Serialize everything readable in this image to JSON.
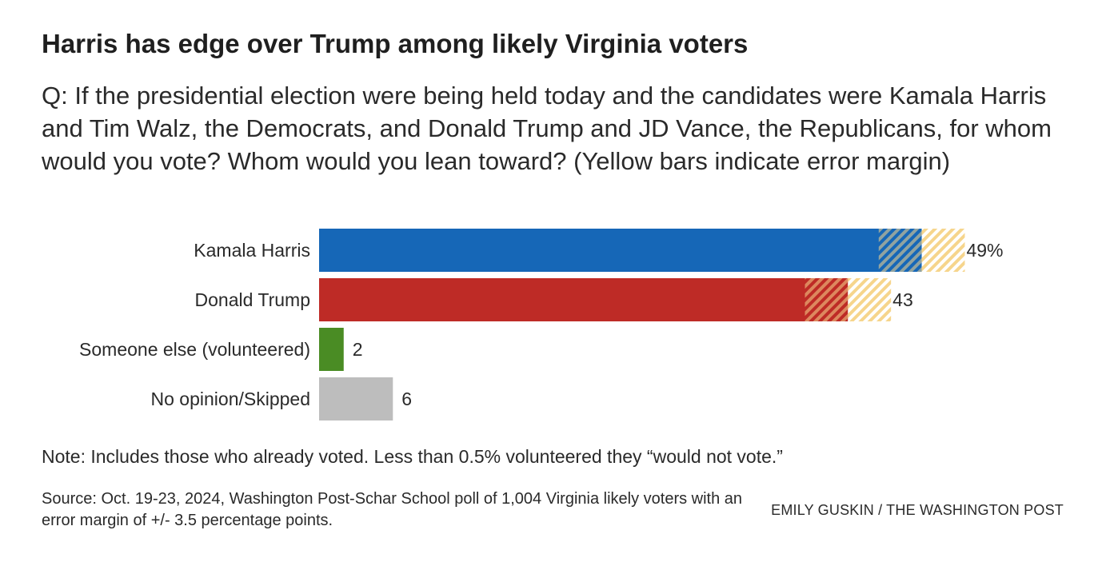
{
  "colors": {
    "harris": "#1667b7",
    "trump": "#be2b26",
    "someone_else": "#4a8c24",
    "no_opinion": "#bdbdbd",
    "error_margin": "#f6d58c"
  },
  "chart_data": {
    "type": "bar",
    "orientation": "horizontal",
    "title": "Harris has edge over Trump among likely Virginia voters",
    "subtitle": "Q: If the presidential election were being held today and the candidates were Kamala Harris and Tim Walz, the Democrats, and Donald Trump and JD Vance, the Republicans, for whom would you vote? Whom would you lean toward? (Yellow bars indicate error margin)",
    "categories": [
      "Kamala Harris",
      "Donald Trump",
      "Someone else (volunteered)",
      "No opinion/Skipped"
    ],
    "values": [
      49,
      43,
      2,
      6
    ],
    "value_labels": [
      "49%",
      "43",
      "2",
      "6"
    ],
    "error_margin": 3.5,
    "error_margin_applies_to": [
      "Kamala Harris",
      "Donald Trump"
    ],
    "series_colors": [
      "#1667b7",
      "#be2b26",
      "#4a8c24",
      "#bdbdbd"
    ],
    "xlim": [
      0,
      100
    ],
    "grid": false,
    "legend": "none"
  },
  "notes": {
    "note": "Note: Includes those who already voted. Less than 0.5% volunteered they “would not vote.”",
    "source": "Source: Oct. 19-23, 2024, Washington Post-Schar School poll of 1,004 Virginia likely voters with an error margin of +/- 3.5 percentage points.",
    "credit": "EMILY GUSKIN / THE WASHINGTON POST"
  }
}
